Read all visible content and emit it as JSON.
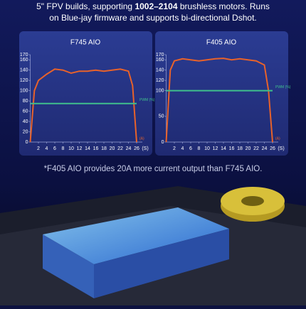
{
  "header": {
    "parts": [
      "5\" FPV builds, supporting ",
      "1002–2104",
      " brushless motors. Runs",
      "on Blue-jay firmware and supports bi-directional Dshot."
    ]
  },
  "footnote": "*F405 AIO provides 20A more current output than F745 AIO.",
  "chart_data": [
    {
      "type": "line",
      "title": "F745 AIO",
      "xlabel": "(S)",
      "x": [
        0,
        1,
        2,
        4,
        6,
        8,
        10,
        12,
        14,
        16,
        18,
        20,
        22,
        24,
        25,
        26
      ],
      "xlim": [
        0,
        26
      ],
      "xticks": [
        2,
        4,
        6,
        8,
        10,
        12,
        14,
        16,
        18,
        20,
        22,
        24,
        26
      ],
      "ylim": [
        0,
        170
      ],
      "yticks": [
        0,
        20,
        40,
        60,
        80,
        100,
        120,
        140,
        160,
        170
      ],
      "series": [
        {
          "name": "(A)",
          "color": "#e8622a",
          "values": [
            0,
            100,
            120,
            132,
            142,
            140,
            134,
            138,
            138,
            140,
            138,
            140,
            142,
            138,
            110,
            0
          ]
        },
        {
          "name": "PWM (%)",
          "color": "#3fc08c",
          "values": [
            75,
            75,
            75,
            75,
            75,
            75,
            75,
            75,
            75,
            75,
            75,
            75,
            75,
            75,
            75,
            75
          ]
        }
      ]
    },
    {
      "type": "line",
      "title": "F405 AIO",
      "xlabel": "(S)",
      "x": [
        0,
        1,
        2,
        4,
        6,
        8,
        10,
        12,
        14,
        16,
        18,
        20,
        22,
        24,
        25,
        26
      ],
      "xlim": [
        0,
        26
      ],
      "xticks": [
        2,
        4,
        6,
        8,
        10,
        12,
        14,
        16,
        18,
        20,
        22,
        24,
        26
      ],
      "ylim": [
        0,
        170
      ],
      "yticks": [
        0,
        50,
        100,
        120,
        140,
        160,
        170
      ],
      "series": [
        {
          "name": "(A)",
          "color": "#e8622a",
          "values": [
            0,
            140,
            158,
            162,
            160,
            158,
            160,
            162,
            163,
            160,
            162,
            160,
            158,
            150,
            100,
            0
          ]
        },
        {
          "name": "PWM (%)",
          "color": "#3fc08c",
          "values": [
            100,
            100,
            100,
            100,
            100,
            100,
            100,
            100,
            100,
            100,
            100,
            100,
            100,
            100,
            100,
            100
          ]
        }
      ]
    }
  ]
}
